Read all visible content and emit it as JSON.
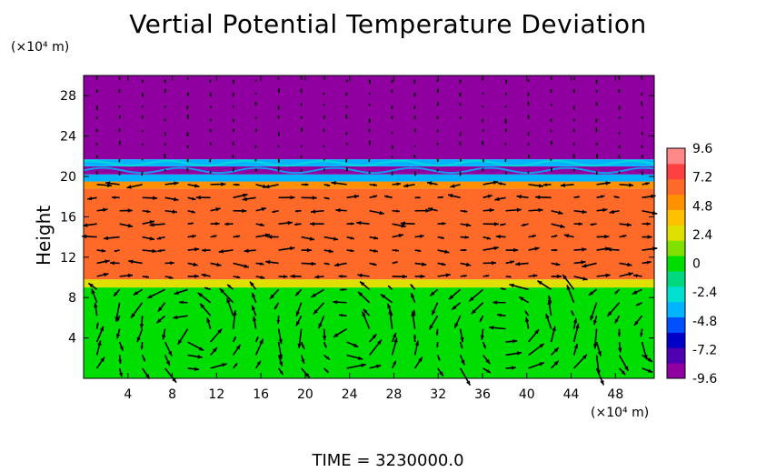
{
  "chart_data": {
    "type": "heatmap",
    "title": "Vertial Potential Temperature Deviation",
    "ylabel": "Height",
    "yunit": "(×10⁴ m)",
    "xunit": "(×10⁴ m)",
    "footer": "TIME  =  3230000.0",
    "xlim": [
      0,
      51.5
    ],
    "ylim": [
      0,
      30
    ],
    "x_ticks": [
      "4",
      "8",
      "12",
      "16",
      "20",
      "24",
      "28",
      "32",
      "36",
      "40",
      "44",
      "48"
    ],
    "y_ticks": [
      "4",
      "8",
      "12",
      "16",
      "20",
      "24",
      "28"
    ],
    "x_tick_values": [
      4,
      8,
      12,
      16,
      20,
      24,
      28,
      32,
      36,
      40,
      44,
      48
    ],
    "y_tick_values": [
      4,
      8,
      12,
      16,
      20,
      24,
      28
    ],
    "colorbar": {
      "min": -9.6,
      "max": 9.6,
      "labels": [
        "9.6",
        "7.2",
        "4.8",
        "2.4",
        "0",
        "-2.4",
        "-4.8",
        "-7.2",
        "-9.6"
      ],
      "label_values": [
        9.6,
        7.2,
        4.8,
        2.4,
        0,
        -2.4,
        -4.8,
        -7.2,
        -9.6
      ],
      "colors": [
        "#9000a0",
        "#5000b0",
        "#0000c8",
        "#0050ff",
        "#00b4ff",
        "#00e0d0",
        "#00d880",
        "#00dd00",
        "#80e000",
        "#e0e000",
        "#ffc000",
        "#ff9000",
        "#ff6a28",
        "#ff4040",
        "#ff8888"
      ]
    },
    "bands": [
      {
        "y_from": 0,
        "y_to": 9.0,
        "value": 0.4
      },
      {
        "y_from": 9.0,
        "y_to": 9.8,
        "value": 3.0
      },
      {
        "y_from": 9.8,
        "y_to": 18.8,
        "value": 6.6
      },
      {
        "y_from": 18.8,
        "y_to": 19.5,
        "value": 5.2
      },
      {
        "y_from": 19.5,
        "y_to": 20.2,
        "value": -4.0
      },
      {
        "y_from": 20.2,
        "y_to": 21.0,
        "value": -8.5
      },
      {
        "y_from": 21.0,
        "y_to": 21.7,
        "value": -3.5
      },
      {
        "y_from": 21.7,
        "y_to": 30.0,
        "value": -9.6
      }
    ],
    "vectors": "wind field arrows overlaid on grid"
  }
}
